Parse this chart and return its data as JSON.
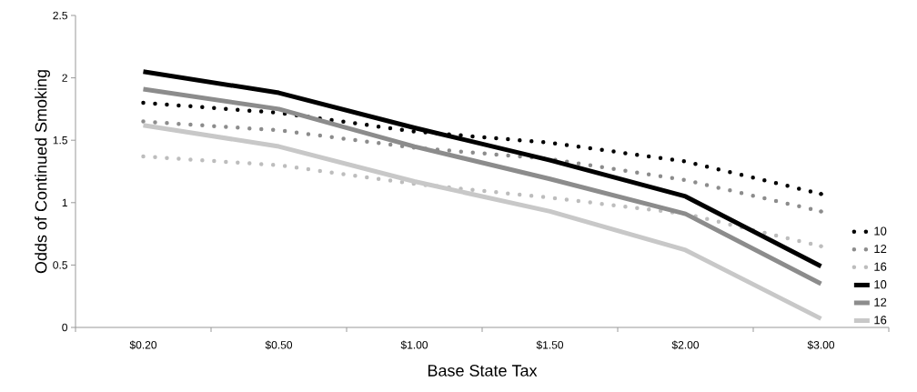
{
  "chart_data": {
    "type": "line",
    "xlabel": "Base State Tax",
    "ylabel": "Odds of Continued Smoking",
    "categories": [
      "$0.20",
      "$0.50",
      "$1.00",
      "$1.50",
      "$2.00",
      "$3.00"
    ],
    "ylim": [
      0,
      2.5
    ],
    "yticks": [
      0,
      0.5,
      1,
      1.5,
      2,
      2.5
    ],
    "grid": false,
    "legend": "right",
    "marker": "none",
    "series": [
      {
        "name": "10",
        "color": "#000000",
        "line_style": "dotted",
        "values": [
          1.8,
          1.72,
          1.57,
          1.48,
          1.33,
          1.07
        ]
      },
      {
        "name": "12",
        "color": "#8c8c8c",
        "line_style": "dotted",
        "values": [
          1.65,
          1.58,
          1.44,
          1.35,
          1.18,
          0.93
        ]
      },
      {
        "name": "16",
        "color": "#bdbdbd",
        "line_style": "dotted",
        "values": [
          1.37,
          1.3,
          1.15,
          1.04,
          0.91,
          0.65
        ]
      },
      {
        "name": "10",
        "color": "#000000",
        "line_style": "solid",
        "values": [
          2.05,
          1.88,
          1.6,
          1.34,
          1.05,
          0.49
        ]
      },
      {
        "name": "12",
        "color": "#8c8c8c",
        "line_style": "solid",
        "values": [
          1.91,
          1.75,
          1.45,
          1.19,
          0.91,
          0.35
        ]
      },
      {
        "name": "16",
        "color": "#c8c8c8",
        "line_style": "solid",
        "values": [
          1.62,
          1.45,
          1.17,
          0.93,
          0.62,
          0.07
        ]
      }
    ]
  }
}
